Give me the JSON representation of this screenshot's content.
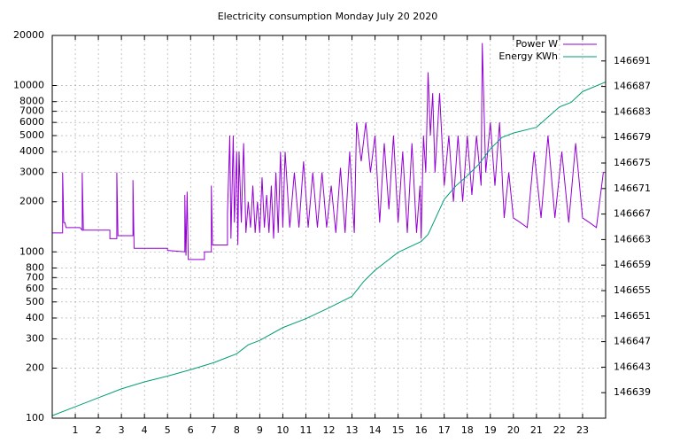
{
  "chart_data": {
    "type": "line",
    "title": "Electricity consumption Monday July 20 2020",
    "xlim": [
      0,
      24
    ],
    "xticks": [
      1,
      2,
      3,
      4,
      5,
      6,
      7,
      8,
      9,
      10,
      11,
      12,
      13,
      14,
      15,
      16,
      17,
      18,
      19,
      20,
      21,
      22,
      23
    ],
    "ylim": [
      100,
      20000
    ],
    "log_y": true,
    "yticks": [
      100,
      200,
      300,
      400,
      500,
      600,
      700,
      800,
      1000,
      2000,
      3000,
      4000,
      5000,
      6000,
      7000,
      8000,
      10000,
      20000
    ],
    "y2lim": [
      146635,
      146695
    ],
    "y2ticks": [
      146639,
      146643,
      146647,
      146651,
      146655,
      146659,
      146663,
      146667,
      146671,
      146675,
      146679,
      146683,
      146687,
      146691
    ],
    "grid": true,
    "legend": "top-right",
    "series": [
      {
        "name": "Power W",
        "color": "#9400d3",
        "x": [
          0,
          0.45,
          0.45,
          0.5,
          0.55,
          0.6,
          1.2,
          1.3,
          1.3,
          1.35,
          2.5,
          2.5,
          2.8,
          2.8,
          2.85,
          3.5,
          3.5,
          3.55,
          5.0,
          5.0,
          5.75,
          5.75,
          5.8,
          5.85,
          5.9,
          6.6,
          6.6,
          6.9,
          6.9,
          6.95,
          7.6,
          7.6,
          7.7,
          7.75,
          7.85,
          7.9,
          8.0,
          8.05,
          8.1,
          8.2,
          8.3,
          8.4,
          8.5,
          8.6,
          8.7,
          8.8,
          8.9,
          9.0,
          9.1,
          9.2,
          9.3,
          9.4,
          9.5,
          9.6,
          9.7,
          9.8,
          9.9,
          10.0,
          10.1,
          10.3,
          10.5,
          10.7,
          10.9,
          11.1,
          11.3,
          11.5,
          11.7,
          11.9,
          12.1,
          12.3,
          12.5,
          12.7,
          12.9,
          13.1,
          13.2,
          13.4,
          13.6,
          13.8,
          14.0,
          14.2,
          14.4,
          14.6,
          14.8,
          15.0,
          15.2,
          15.4,
          15.6,
          15.8,
          15.95,
          16.0,
          16.1,
          16.2,
          16.3,
          16.4,
          16.5,
          16.6,
          16.8,
          17.0,
          17.2,
          17.4,
          17.6,
          17.8,
          18.0,
          18.2,
          18.4,
          18.6,
          18.65,
          18.8,
          19.0,
          19.2,
          19.4,
          19.6,
          19.8,
          20.0,
          20.3,
          20.6,
          20.9,
          21.2,
          21.5,
          21.8,
          22.1,
          22.4,
          22.7,
          23.0,
          23.3,
          23.6,
          23.9,
          24.0
        ],
        "values": [
          1300,
          1300,
          3000,
          1500,
          1500,
          1400,
          1400,
          1350,
          3000,
          1350,
          1350,
          1200,
          1200,
          3000,
          1250,
          1250,
          2700,
          1050,
          1050,
          1020,
          1000,
          2200,
          950,
          2300,
          900,
          900,
          1000,
          1000,
          2500,
          1100,
          1100,
          1700,
          5000,
          1200,
          5000,
          1500,
          4000,
          1100,
          4000,
          1500,
          4500,
          1300,
          2000,
          1400,
          2500,
          1300,
          2000,
          1300,
          2800,
          1400,
          2200,
          1300,
          2500,
          1200,
          3000,
          1300,
          4000,
          1400,
          4000,
          1400,
          3000,
          1400,
          3500,
          1400,
          3000,
          1400,
          3000,
          1400,
          2500,
          1300,
          3200,
          1300,
          4000,
          1300,
          6000,
          3500,
          6000,
          3000,
          5000,
          1500,
          4500,
          1800,
          5000,
          1500,
          4000,
          1300,
          4500,
          1300,
          2500,
          1200,
          5000,
          3000,
          12000,
          5000,
          9000,
          3000,
          9000,
          2500,
          5000,
          2000,
          5000,
          2000,
          5000,
          2200,
          5000,
          2500,
          18000,
          3000,
          6000,
          2500,
          6000,
          1600,
          3000,
          1600,
          1500,
          1400,
          4000,
          1600,
          5000,
          1600,
          4000,
          1500,
          4500,
          1600,
          1500,
          1400,
          3000,
          3000
        ]
      },
      {
        "name": "Energy KWh",
        "color": "#009e73",
        "axis": "y2",
        "x": [
          0,
          1,
          2,
          3,
          4,
          5,
          6,
          7,
          8,
          8.5,
          9,
          10,
          11,
          12,
          13,
          13.5,
          14,
          15,
          16,
          16.3,
          17,
          17.5,
          18,
          18.5,
          19,
          19.5,
          20,
          21,
          21.5,
          22,
          22.5,
          23,
          24
        ],
        "values": [
          146635.4,
          146636.8,
          146638.2,
          146639.6,
          146640.7,
          146641.6,
          146642.6,
          146643.7,
          146645.1,
          146646.5,
          146647.2,
          146649.2,
          146650.6,
          146652.3,
          146654.1,
          146656.4,
          146658.2,
          146661,
          146662.7,
          146663.8,
          146669.3,
          146671.4,
          146673,
          146674.8,
          146677.2,
          146679,
          146679.7,
          146680.6,
          146682.2,
          146683.8,
          146684.5,
          146686.2,
          146687.7
        ]
      }
    ]
  }
}
